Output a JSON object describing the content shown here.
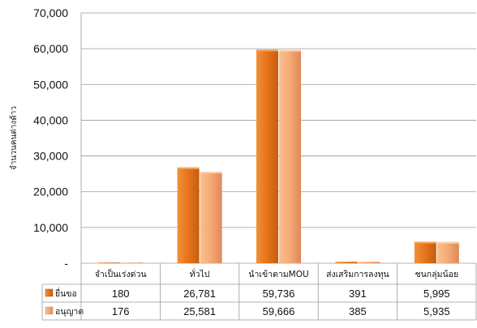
{
  "chart_data": {
    "type": "bar",
    "categories": [
      "จำเป็นเร่งด่วน",
      "ทั่วไป",
      "นำเข้าตามMOU",
      "ส่งเสริมการลงทุน",
      "ชนกลุ่มน้อย"
    ],
    "series": [
      {
        "name": "ยื่นขอ",
        "values": [
          180,
          26781,
          59736,
          391,
          5995
        ],
        "color": "#f28a2a",
        "labels": [
          "180",
          "26,781",
          "59,736",
          "391",
          "5,995"
        ]
      },
      {
        "name": "อนุญาต",
        "values": [
          176,
          25581,
          59666,
          385,
          5935
        ],
        "color": "#f7b07e",
        "labels": [
          "176",
          "25,581",
          "59,666",
          "385",
          "5,935"
        ]
      }
    ],
    "ylabel": "จำนวนคนต่างด้าว",
    "ylim": [
      0,
      70000
    ],
    "yticks": [
      0,
      10000,
      20000,
      30000,
      40000,
      50000,
      60000,
      70000
    ],
    "ytick_labels": [
      "-",
      "10,000",
      "20,000",
      "30,000",
      "40,000",
      "50,000",
      "60,000",
      "70,000"
    ],
    "grid": true,
    "legend": "data-table"
  }
}
